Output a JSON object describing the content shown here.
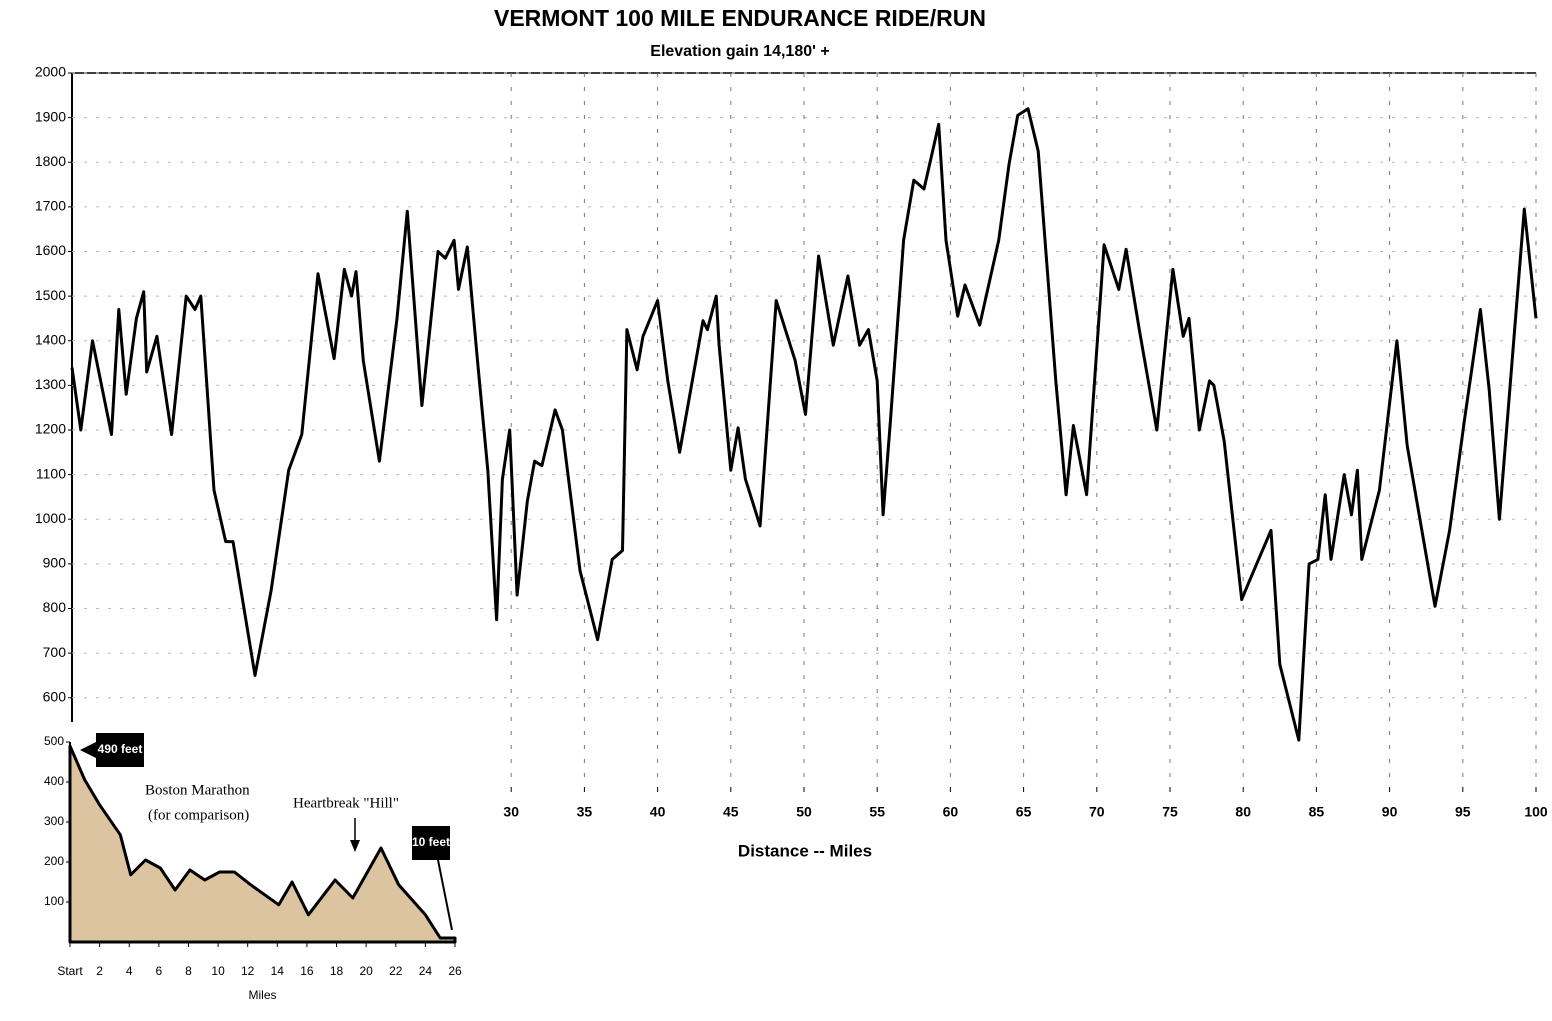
{
  "chart_data": [
    {
      "type": "line",
      "title": "VERMONT 100 MILE ENDURANCE RIDE/RUN",
      "subtitle": "Elevation gain 14,180' +",
      "x_label": "Distance -- Miles",
      "color": "#000000",
      "grid": true,
      "xlim": [
        0,
        100
      ],
      "ylim": [
        400,
        2000
      ],
      "xticks": [
        30,
        35,
        40,
        45,
        50,
        55,
        60,
        65,
        70,
        75,
        80,
        85,
        90,
        95,
        100
      ],
      "yticks": [
        600,
        700,
        800,
        900,
        1000,
        1100,
        1200,
        1300,
        1400,
        1500,
        1600,
        1700,
        1800,
        1900,
        2000
      ],
      "x": [
        0,
        0.6,
        1.4,
        2.7,
        3.2,
        3.7,
        4.4,
        4.9,
        5.1,
        5.8,
        6.8,
        7.8,
        8.4,
        8.8,
        9.7,
        10.5,
        11,
        12.5,
        13.6,
        14.8,
        15.7,
        16.8,
        17.9,
        18.6,
        19.1,
        19.4,
        19.9,
        21,
        22.2,
        22.9,
        23.9,
        25,
        25.5,
        26.1,
        26.4,
        27,
        27.7,
        28.4,
        29,
        29.4,
        29.9,
        30.4,
        31.1,
        31.6,
        32.1,
        33,
        33.5,
        34.7,
        35.9,
        36.9,
        37.6,
        37.9,
        38.6,
        39,
        40,
        40.7,
        41.5,
        43.1,
        43.4,
        44,
        44.2,
        45,
        45.5,
        46,
        47,
        48.1,
        49.4,
        50.1,
        51,
        52,
        53,
        53.8,
        54.4,
        55,
        55.4,
        55.9,
        56.8,
        57.5,
        58.2,
        59.2,
        59.7,
        60.5,
        61,
        62,
        63.3,
        64,
        64.6,
        65.3,
        66,
        67.2,
        67.9,
        68.4,
        69.3,
        70.5,
        71.5,
        72,
        72.9,
        74.1,
        75.2,
        75.9,
        76.3,
        77,
        77.7,
        78,
        78.7,
        79.9,
        80.4,
        81.9,
        82.5,
        83.8,
        84.5,
        85.1,
        85.6,
        86,
        86.9,
        87.4,
        87.8,
        88.1,
        89.3,
        90.5,
        91.2,
        93.1,
        94.1,
        95.1,
        96.2,
        96.8,
        97.5,
        99.2,
        100
      ],
      "values": [
        1340,
        1200,
        1400,
        1190,
        1470,
        1280,
        1450,
        1510,
        1330,
        1410,
        1190,
        1500,
        1470,
        1500,
        1065,
        950,
        950,
        650,
        840,
        1110,
        1190,
        1550,
        1360,
        1560,
        1500,
        1555,
        1355,
        1130,
        1450,
        1690,
        1255,
        1600,
        1585,
        1625,
        1515,
        1610,
        1355,
        1110,
        775,
        1090,
        1200,
        830,
        1040,
        1130,
        1120,
        1245,
        1200,
        885,
        730,
        910,
        930,
        1425,
        1335,
        1410,
        1490,
        1310,
        1150,
        1445,
        1425,
        1500,
        1390,
        1110,
        1205,
        1090,
        985,
        1490,
        1355,
        1235,
        1590,
        1390,
        1545,
        1390,
        1425,
        1310,
        1010,
        1220,
        1625,
        1760,
        1740,
        1885,
        1625,
        1455,
        1525,
        1435,
        1625,
        1795,
        1905,
        1920,
        1825,
        1310,
        1055,
        1210,
        1055,
        1615,
        1515,
        1605,
        1425,
        1200,
        1560,
        1410,
        1450,
        1200,
        1310,
        1300,
        1175,
        820,
        860,
        975,
        675,
        505,
        900,
        910,
        1055,
        910,
        1100,
        1010,
        1110,
        910,
        1065,
        1400,
        1165,
        805,
        975,
        1220,
        1470,
        1290,
        1000,
        1695,
        1450
      ]
    },
    {
      "type": "area",
      "x_label": "Miles",
      "color": "#dcc4a0",
      "annotations": [
        "Boston Marathon",
        "(for comparison)",
        "Heartbreak \"Hill\"",
        "490 feet",
        "10 feet"
      ],
      "xlim": [
        0,
        26
      ],
      "ylim": [
        0,
        500
      ],
      "xticks": [
        {
          "value": 0,
          "label": "Start"
        },
        2,
        4,
        6,
        8,
        10,
        12,
        14,
        16,
        18,
        20,
        22,
        24,
        26
      ],
      "yticks": [
        100,
        200,
        300,
        400,
        500
      ],
      "x": [
        0,
        1,
        2,
        3.4,
        4.1,
        5.1,
        6.1,
        7.1,
        8.1,
        9.1,
        10.1,
        11.1,
        12.2,
        14.1,
        15,
        16.1,
        17.9,
        19.1,
        21,
        22.2,
        24,
        25,
        26
      ],
      "values": [
        490,
        405,
        343,
        268,
        168,
        205,
        185,
        130,
        180,
        155,
        175,
        175,
        143,
        93,
        150,
        68,
        155,
        110,
        235,
        143,
        68,
        10,
        10
      ]
    }
  ]
}
